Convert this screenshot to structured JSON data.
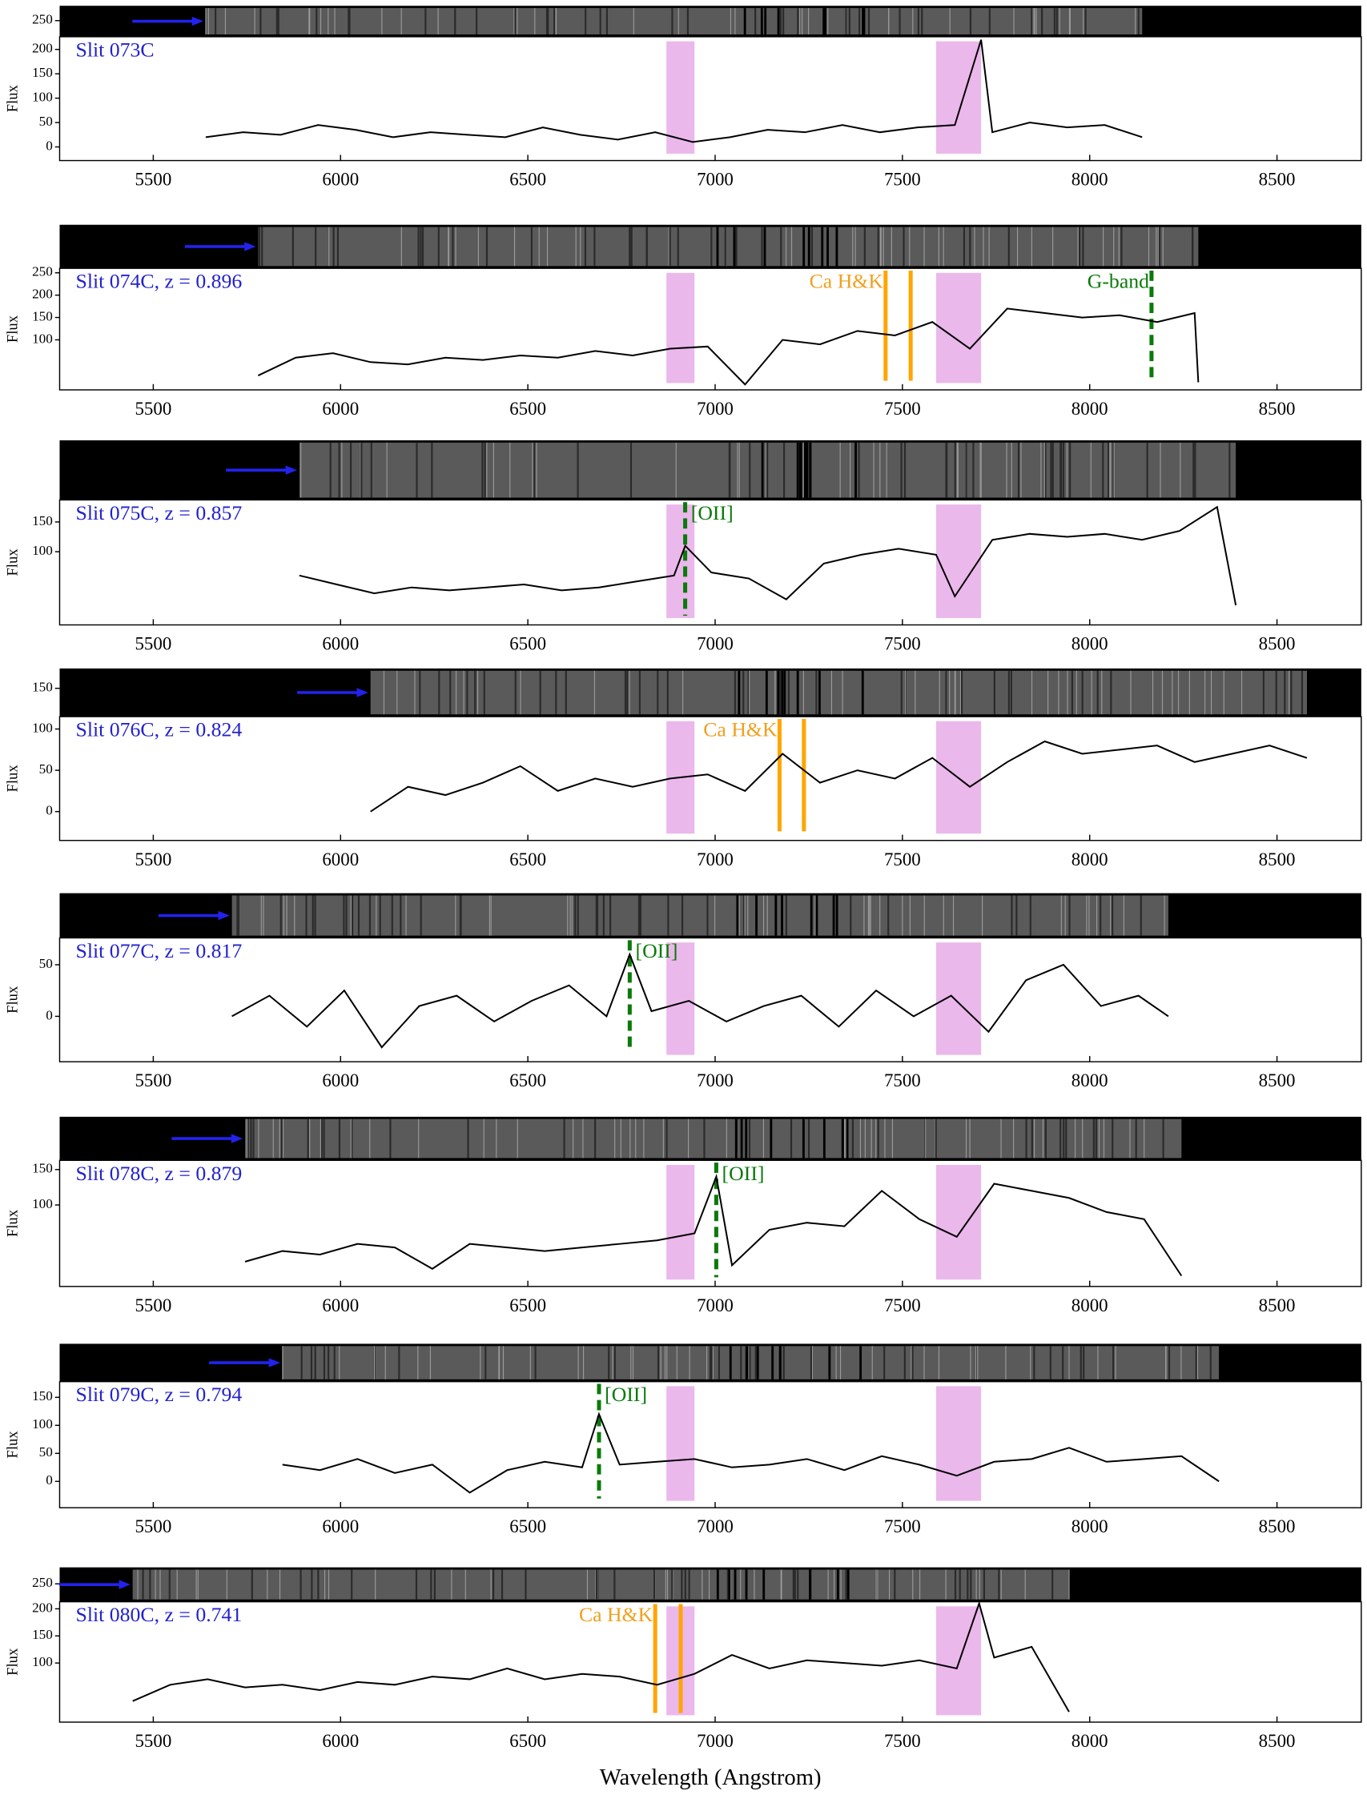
{
  "chart_data": [
    {
      "type": "line",
      "label": "Slit 073C",
      "ylabel": "Flux",
      "xlim": [
        5250,
        8725
      ],
      "xticks": [
        5500,
        6000,
        6500,
        7000,
        7500,
        8000,
        8500
      ],
      "ylim": [
        -28,
        226
      ],
      "yticks": [
        0,
        50,
        100,
        150,
        200
      ],
      "strip_ylim": [
        0,
        480
      ],
      "strip_yticks": [
        250
      ],
      "color": "#000000",
      "bands": [
        [
          6870,
          6945
        ],
        [
          7590,
          7710
        ]
      ],
      "x": [
        5640,
        5740,
        5840,
        5940,
        6040,
        6140,
        6240,
        6340,
        6440,
        6540,
        6640,
        6740,
        6840,
        6940,
        7040,
        7140,
        7240,
        7340,
        7440,
        7540,
        7640,
        7710,
        7740,
        7840,
        7940,
        8040,
        8140
      ],
      "values": [
        20,
        30,
        25,
        45,
        35,
        20,
        30,
        25,
        20,
        40,
        25,
        15,
        30,
        10,
        20,
        35,
        30,
        45,
        30,
        40,
        45,
        220,
        30,
        50,
        40,
        45,
        20
      ],
      "features": []
    },
    {
      "type": "line",
      "label": "Slit 074C, z = 0.896",
      "ylabel": "Flux",
      "xlim": [
        5250,
        8725
      ],
      "xticks": [
        5500,
        6000,
        6500,
        7000,
        7500,
        8000,
        8500
      ],
      "ylim": [
        -12,
        260
      ],
      "yticks": [
        100,
        150,
        200,
        250
      ],
      "color": "#000000",
      "bands": [
        [
          6870,
          6945
        ],
        [
          7590,
          7710
        ]
      ],
      "x": [
        5780,
        5880,
        5980,
        6080,
        6180,
        6280,
        6380,
        6480,
        6580,
        6680,
        6780,
        6880,
        6980,
        7080,
        7180,
        7280,
        7380,
        7480,
        7580,
        7680,
        7780,
        7880,
        7980,
        8080,
        8180,
        8280,
        8290
      ],
      "values": [
        20,
        60,
        70,
        50,
        45,
        60,
        55,
        65,
        60,
        75,
        65,
        80,
        85,
        0,
        100,
        90,
        120,
        110,
        140,
        80,
        170,
        160,
        150,
        155,
        140,
        160,
        5
      ],
      "features": [
        {
          "label": "Ca H&K",
          "x": [
            7455,
            7522
          ],
          "color": "#ffa500",
          "dashed": false
        },
        {
          "label": "G-band",
          "x": [
            8165
          ],
          "color": "#0a7a0a",
          "dashed": true
        }
      ]
    },
    {
      "type": "line",
      "label": "Slit 075C, z = 0.857",
      "ylabel": "Flux",
      "xlim": [
        5250,
        8725
      ],
      "xticks": [
        5500,
        6000,
        6500,
        7000,
        7500,
        8000,
        8500
      ],
      "ylim": [
        -23,
        187
      ],
      "yticks": [
        100,
        150
      ],
      "color": "#000000",
      "bands": [
        [
          6870,
          6945
        ],
        [
          7590,
          7710
        ]
      ],
      "x": [
        5890,
        5990,
        6090,
        6190,
        6290,
        6390,
        6490,
        6590,
        6690,
        6790,
        6890,
        6920,
        6990,
        7090,
        7190,
        7290,
        7390,
        7490,
        7590,
        7640,
        7740,
        7840,
        7940,
        8040,
        8140,
        8240,
        8340,
        8390
      ],
      "values": [
        60,
        45,
        30,
        40,
        35,
        40,
        45,
        35,
        40,
        50,
        60,
        110,
        65,
        55,
        20,
        80,
        95,
        105,
        95,
        25,
        120,
        130,
        125,
        130,
        120,
        135,
        175,
        10
      ],
      "features": [
        {
          "label": "[OII]",
          "x": [
            6920
          ],
          "color": "#0a7a0a",
          "dashed": true
        }
      ]
    },
    {
      "type": "line",
      "label": "Slit 076C, z = 0.824",
      "ylabel": "Flux",
      "xlim": [
        5250,
        8725
      ],
      "xticks": [
        5500,
        6000,
        6500,
        7000,
        7500,
        8000,
        8500
      ],
      "ylim": [
        -35,
        115
      ],
      "yticks": [
        0,
        50,
        100
      ],
      "strip_ylim": [
        0,
        255
      ],
      "strip_yticks": [
        150
      ],
      "color": "#000000",
      "bands": [
        [
          6870,
          6945
        ],
        [
          7590,
          7710
        ]
      ],
      "x": [
        6080,
        6180,
        6280,
        6380,
        6480,
        6580,
        6680,
        6780,
        6880,
        6980,
        7080,
        7180,
        7280,
        7380,
        7480,
        7580,
        7680,
        7780,
        7880,
        7980,
        8080,
        8180,
        8280,
        8380,
        8480,
        8580
      ],
      "values": [
        0,
        30,
        20,
        35,
        55,
        25,
        40,
        30,
        40,
        45,
        25,
        70,
        35,
        50,
        40,
        65,
        30,
        60,
        85,
        70,
        75,
        80,
        60,
        70,
        80,
        65
      ],
      "features": [
        {
          "label": "Ca H&K",
          "x": [
            7172,
            7237
          ],
          "color": "#ffa500",
          "dashed": false
        }
      ]
    },
    {
      "type": "line",
      "label": "Slit 077C, z = 0.817",
      "ylabel": "Flux",
      "xlim": [
        5250,
        8725
      ],
      "xticks": [
        5500,
        6000,
        6500,
        7000,
        7500,
        8000,
        8500
      ],
      "ylim": [
        -44,
        76
      ],
      "yticks": [
        0,
        50
      ],
      "color": "#000000",
      "bands": [
        [
          6870,
          6945
        ],
        [
          7590,
          7710
        ]
      ],
      "x": [
        5710,
        5810,
        5910,
        6010,
        6110,
        6210,
        6310,
        6410,
        6510,
        6610,
        6710,
        6772,
        6830,
        6930,
        7030,
        7130,
        7230,
        7330,
        7430,
        7530,
        7630,
        7730,
        7830,
        7930,
        8030,
        8130,
        8210
      ],
      "values": [
        0,
        20,
        -10,
        25,
        -30,
        10,
        20,
        -5,
        15,
        30,
        0,
        60,
        5,
        15,
        -5,
        10,
        20,
        -10,
        25,
        0,
        20,
        -15,
        35,
        50,
        10,
        20,
        0
      ],
      "features": [
        {
          "label": "[OII]",
          "x": [
            6772
          ],
          "color": "#0a7a0a",
          "dashed": true
        }
      ]
    },
    {
      "type": "line",
      "label": "Slit 078C, z = 0.879",
      "ylabel": "Flux",
      "xlim": [
        5250,
        8725
      ],
      "xticks": [
        5500,
        6000,
        6500,
        7000,
        7500,
        8000,
        8500
      ],
      "ylim": [
        -15,
        163
      ],
      "yticks": [
        100,
        150
      ],
      "color": "#000000",
      "bands": [
        [
          6870,
          6945
        ],
        [
          7590,
          7710
        ]
      ],
      "x": [
        5745,
        5845,
        5945,
        6045,
        6145,
        6245,
        6345,
        6445,
        6545,
        6645,
        6745,
        6845,
        6945,
        7003,
        7045,
        7145,
        7245,
        7345,
        7445,
        7545,
        7645,
        7745,
        7845,
        7945,
        8045,
        8145,
        8245
      ],
      "values": [
        20,
        35,
        30,
        45,
        40,
        10,
        45,
        40,
        35,
        40,
        45,
        50,
        60,
        140,
        15,
        65,
        75,
        70,
        120,
        80,
        55,
        130,
        120,
        110,
        90,
        80,
        0
      ],
      "features": [
        {
          "label": "[OII]",
          "x": [
            7003
          ],
          "color": "#0a7a0a",
          "dashed": true
        }
      ]
    },
    {
      "type": "line",
      "label": "Slit 079C, z = 0.794",
      "ylabel": "Flux",
      "xlim": [
        5250,
        8725
      ],
      "xticks": [
        5500,
        6000,
        6500,
        7000,
        7500,
        8000,
        8500
      ],
      "ylim": [
        -47,
        178
      ],
      "yticks": [
        0,
        50,
        100,
        150
      ],
      "color": "#000000",
      "bands": [
        [
          6870,
          6945
        ],
        [
          7590,
          7710
        ]
      ],
      "x": [
        5845,
        5945,
        6045,
        6145,
        6245,
        6345,
        6445,
        6545,
        6645,
        6690,
        6745,
        6845,
        6945,
        7045,
        7145,
        7245,
        7345,
        7445,
        7545,
        7645,
        7745,
        7845,
        7945,
        8045,
        8145,
        8245,
        8345
      ],
      "values": [
        30,
        20,
        40,
        15,
        30,
        -20,
        20,
        35,
        25,
        120,
        30,
        35,
        40,
        25,
        30,
        40,
        20,
        45,
        30,
        10,
        35,
        40,
        60,
        35,
        40,
        45,
        0
      ],
      "features": [
        {
          "label": "[OII]",
          "x": [
            6690
          ],
          "color": "#0a7a0a",
          "dashed": true
        }
      ]
    },
    {
      "type": "line",
      "label": "Slit 080C, z = 0.741",
      "ylabel": "Flux",
      "xlabel": "Wavelength (Angstrom)",
      "xlim": [
        5250,
        8725
      ],
      "xticks": [
        5500,
        6000,
        6500,
        7000,
        7500,
        8000,
        8500
      ],
      "ylim": [
        -9,
        213
      ],
      "yticks": [
        100,
        150,
        200
      ],
      "strip_ylim": [
        0,
        480
      ],
      "strip_yticks": [
        250
      ],
      "color": "#000000",
      "bands": [
        [
          6870,
          6945
        ],
        [
          7590,
          7710
        ]
      ],
      "x": [
        5445,
        5545,
        5645,
        5745,
        5845,
        5945,
        6045,
        6145,
        6245,
        6345,
        6445,
        6545,
        6645,
        6745,
        6845,
        6945,
        7045,
        7145,
        7245,
        7345,
        7445,
        7545,
        7645,
        7705,
        7745,
        7845,
        7945
      ],
      "values": [
        30,
        60,
        70,
        55,
        60,
        50,
        65,
        60,
        75,
        70,
        90,
        70,
        80,
        75,
        60,
        80,
        115,
        90,
        105,
        100,
        95,
        105,
        90,
        210,
        110,
        130,
        10
      ],
      "features": [
        {
          "label": "Ca H&K",
          "x": [
            6840,
            6908
          ],
          "color": "#ffa500",
          "dashed": false
        }
      ]
    }
  ]
}
